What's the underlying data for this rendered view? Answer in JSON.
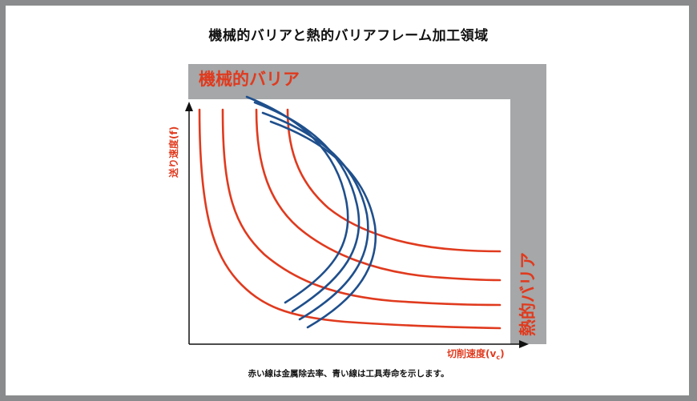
{
  "title": "機械的バリアと熱的バリアフレーム加工領域",
  "labels": {
    "mechanical_barrier": "機械的バリア",
    "thermal_barrier": "熱的バリア",
    "y_axis": "送り速度(f)",
    "x_axis_main": "切削速度(v",
    "x_axis_sub": "c",
    "x_axis_close": ")"
  },
  "caption": "赤い線は金属除去率、青い線は工具寿命を示します。",
  "colors": {
    "background": "#8a8b8c",
    "barrier_band": "#a5a7a8",
    "red_lines": "#e03a1e",
    "blue_lines": "#1f4f8c",
    "axis": "#111111"
  }
}
